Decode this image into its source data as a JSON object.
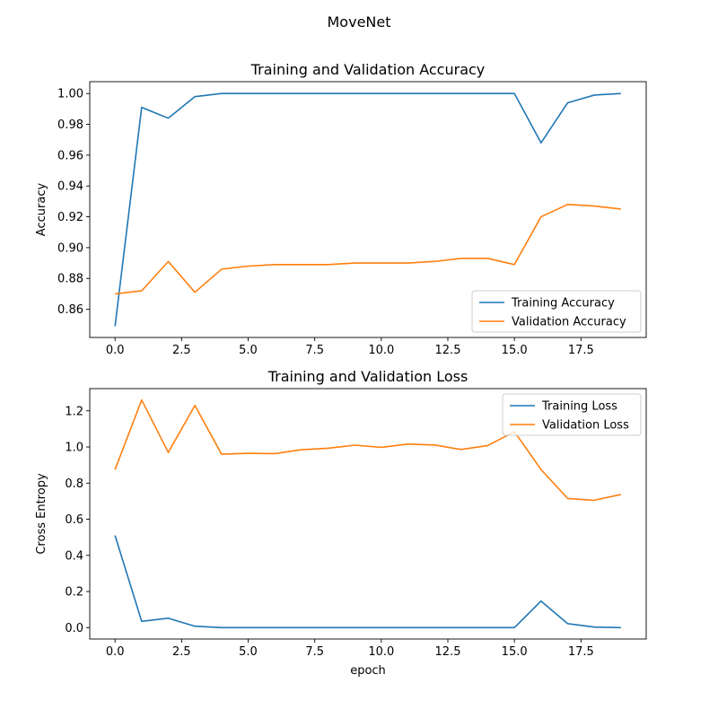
{
  "figure": {
    "suptitle": "MoveNet"
  },
  "chart_data": [
    {
      "type": "line",
      "title": "Training and Validation Accuracy",
      "xlabel": "",
      "ylabel": "Accuracy",
      "xlim": [
        -0.95,
        19.95
      ],
      "ylim": [
        0.8417,
        1.0077
      ],
      "xticks": [
        0,
        2.5,
        5,
        7.5,
        10,
        12.5,
        15,
        17.5
      ],
      "xtick_labels": [
        "0.0",
        "2.5",
        "5.0",
        "7.5",
        "10.0",
        "12.5",
        "15.0",
        "17.5"
      ],
      "yticks": [
        0.86,
        0.88,
        0.9,
        0.92,
        0.94,
        0.96,
        0.98,
        1.0
      ],
      "ytick_labels": [
        "0.86",
        "0.88",
        "0.90",
        "0.92",
        "0.94",
        "0.96",
        "0.98",
        "1.00"
      ],
      "legend_position": "lower-right",
      "grid": false,
      "x": [
        0,
        1,
        2,
        3,
        4,
        5,
        6,
        7,
        8,
        9,
        10,
        11,
        12,
        13,
        14,
        15,
        16,
        17,
        18,
        19
      ],
      "series": [
        {
          "name": "Training Accuracy",
          "color": "#1f77b4",
          "values": [
            0.849,
            0.991,
            0.984,
            0.998,
            1.0,
            1.0,
            1.0,
            1.0,
            1.0,
            1.0,
            1.0,
            1.0,
            1.0,
            1.0,
            1.0,
            1.0,
            0.968,
            0.994,
            0.999,
            1.0
          ]
        },
        {
          "name": "Validation Accuracy",
          "color": "#ff7f0e",
          "values": [
            0.87,
            0.872,
            0.891,
            0.871,
            0.886,
            0.888,
            0.889,
            0.889,
            0.889,
            0.89,
            0.89,
            0.89,
            0.891,
            0.893,
            0.893,
            0.889,
            0.92,
            0.928,
            0.927,
            0.925
          ]
        }
      ]
    },
    {
      "type": "line",
      "title": "Training and Validation Loss",
      "xlabel": "epoch",
      "ylabel": "Cross Entropy",
      "xlim": [
        -0.95,
        19.95
      ],
      "ylim": [
        -0.063,
        1.323
      ],
      "xticks": [
        0,
        2.5,
        5,
        7.5,
        10,
        12.5,
        15,
        17.5
      ],
      "xtick_labels": [
        "0.0",
        "2.5",
        "5.0",
        "7.5",
        "10.0",
        "12.5",
        "15.0",
        "17.5"
      ],
      "yticks": [
        0.0,
        0.2,
        0.4,
        0.6,
        0.8,
        1.0,
        1.2
      ],
      "ytick_labels": [
        "0.0",
        "0.2",
        "0.4",
        "0.6",
        "0.8",
        "1.0",
        "1.2"
      ],
      "legend_position": "upper-right",
      "grid": false,
      "x": [
        0,
        1,
        2,
        3,
        4,
        5,
        6,
        7,
        8,
        9,
        10,
        11,
        12,
        13,
        14,
        15,
        16,
        17,
        18,
        19
      ],
      "series": [
        {
          "name": "Training Loss",
          "color": "#1f77b4",
          "values": [
            0.51,
            0.035,
            0.052,
            0.008,
            0.0,
            0.0,
            0.0,
            0.0,
            0.0,
            0.0,
            0.0,
            0.0,
            0.0,
            0.0,
            0.0,
            0.0,
            0.147,
            0.022,
            0.003,
            0.0
          ]
        },
        {
          "name": "Validation Loss",
          "color": "#ff7f0e",
          "values": [
            0.875,
            1.26,
            0.97,
            1.23,
            0.96,
            0.965,
            0.963,
            0.985,
            0.993,
            1.01,
            0.998,
            1.016,
            1.011,
            0.986,
            1.008,
            1.085,
            0.875,
            0.715,
            0.705,
            0.737
          ]
        }
      ]
    }
  ]
}
